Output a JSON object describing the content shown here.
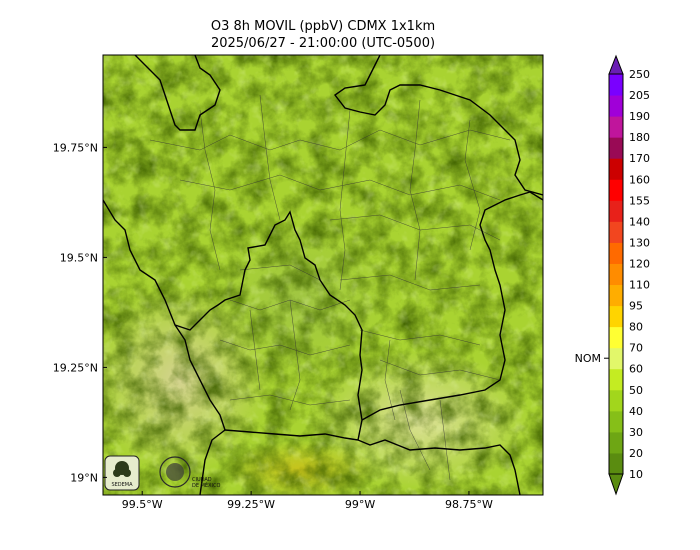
{
  "title": {
    "line1": "O3 8h MOVIL (ppbV) CDMX 1x1km",
    "line2": "2025/06/27 - 21:00:00 (UTC-0500)"
  },
  "map": {
    "lon_range": [
      -99.59,
      -98.58
    ],
    "lat_range": [
      18.96,
      19.96
    ],
    "x_ticks": [
      {
        "value": -99.5,
        "label": "99.5°W"
      },
      {
        "value": -99.25,
        "label": "99.25°W"
      },
      {
        "value": -99.0,
        "label": "99°W"
      },
      {
        "value": -98.75,
        "label": "98.75°W"
      }
    ],
    "y_ticks": [
      {
        "value": 19.75,
        "label": "19.75°N"
      },
      {
        "value": 19.5,
        "label": "19.5°N"
      },
      {
        "value": 19.25,
        "label": "19.25°N"
      },
      {
        "value": 19.0,
        "label": "19°N"
      }
    ],
    "logos": [
      {
        "name": "sedema-logo",
        "text": "SEDEMA"
      },
      {
        "name": "cdmx-logo",
        "text": "CIUDAD DE MÉXICO"
      }
    ]
  },
  "colorbar": {
    "levels": [
      10,
      20,
      30,
      40,
      50,
      60,
      70,
      80,
      95,
      110,
      120,
      130,
      140,
      155,
      160,
      170,
      180,
      190,
      205,
      250
    ],
    "labels": [
      "10",
      "20",
      "30",
      "40",
      "50",
      "60",
      "70",
      "80",
      "95",
      "110",
      "120",
      "130",
      "140",
      "155",
      "160",
      "170",
      "180",
      "190",
      "205",
      "250"
    ],
    "colors": [
      "#5a8c10",
      "#6ea614",
      "#86bf18",
      "#a2d61c",
      "#c4ec22",
      "#e2f76a",
      "#ffff33",
      "#ffd400",
      "#ffad00",
      "#ff8c00",
      "#ff6a00",
      "#f2461f",
      "#e8211a",
      "#ff0000",
      "#cc0000",
      "#990a55",
      "#c0159c",
      "#a000d8",
      "#7a00ff",
      "#5a14aa"
    ],
    "under_color": "#5a8c10",
    "over_color": "#6a1eb4",
    "nom_label": "NOM",
    "nom_value": 65
  }
}
